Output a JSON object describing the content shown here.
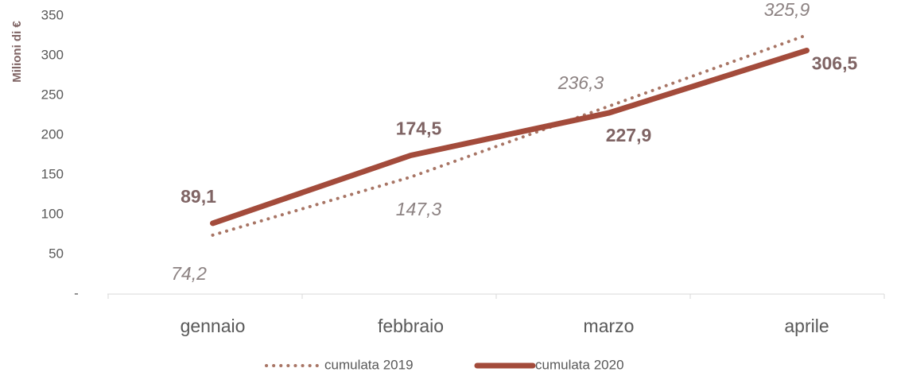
{
  "chart_data": {
    "type": "line",
    "y_label": "Milioni di €",
    "categories": [
      "gennaio",
      "febbraio",
      "marzo",
      "aprile"
    ],
    "series": [
      {
        "name": "cumulata 2019",
        "color": "#a87565",
        "style": "dotted",
        "values": [
          74.2,
          147.3,
          236.3,
          325.9
        ],
        "value_labels": [
          "74,2",
          "147,3",
          "236,3",
          "325,9"
        ]
      },
      {
        "name": "cumulata 2020",
        "color": "#a34b3b",
        "style": "solid",
        "values": [
          89.1,
          174.5,
          227.9,
          306.5
        ],
        "value_labels": [
          "89,1",
          "174,5",
          "227,9",
          "306,5"
        ]
      }
    ],
    "ylim": [
      0,
      350
    ],
    "yticks": [
      {
        "value": 0,
        "label": "-"
      },
      50,
      100,
      150,
      200,
      250,
      300,
      350
    ],
    "legend": "bottom"
  }
}
